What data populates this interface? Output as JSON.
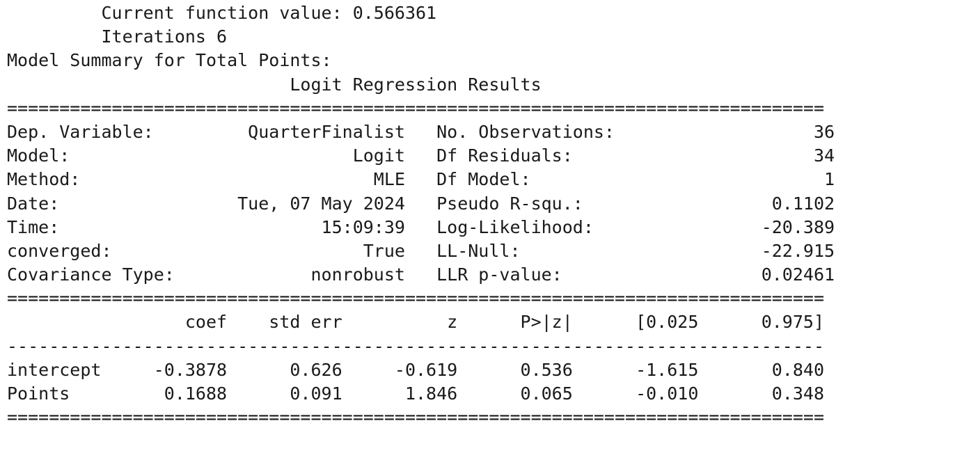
{
  "header": {
    "function_value": "         Current function value: 0.566361",
    "iterations": "         Iterations 6",
    "summary_title": "Model Summary for Total Points:",
    "results_title": "                           Logit Regression Results"
  },
  "rules": {
    "double": "==============================================================================",
    "single": "------------------------------------------------------------------------------"
  },
  "summary_rows": [
    "Dep. Variable:         QuarterFinalist   No. Observations:                   36",
    "Model:                           Logit   Df Residuals:                       34",
    "Method:                            MLE   Df Model:                            1",
    "Date:                 Tue, 07 May 2024   Pseudo R-squ.:                  0.1102",
    "Time:                         15:09:39   Log-Likelihood:                -20.389",
    "converged:                        True   LL-Null:                       -22.915",
    "Covariance Type:             nonrobust   LLR p-value:                   0.02461"
  ],
  "coef_header": "                 coef    std err          z      P>|z|      [0.025      0.975]",
  "coef_rows": [
    "intercept     -0.3878      0.626     -0.619      0.536      -1.615       0.840",
    "Points         0.1688      0.091      1.846      0.065      -0.010       0.348"
  ]
}
